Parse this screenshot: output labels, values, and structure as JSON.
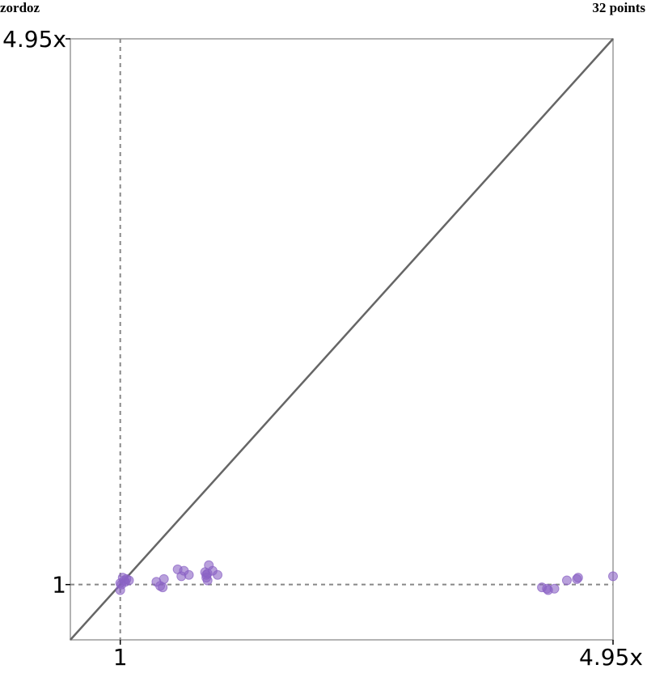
{
  "header": {
    "left_label": "zordoz",
    "right_label": "32 points"
  },
  "chart_data": {
    "type": "scatter",
    "xlabel": "",
    "ylabel": "",
    "xlim": [
      0.6,
      4.95
    ],
    "ylim": [
      0.6,
      4.95
    ],
    "x_ticks": [
      {
        "value": 1,
        "label": "1"
      },
      {
        "value": 4.95,
        "label": "4.95x"
      }
    ],
    "y_ticks": [
      {
        "value": 1,
        "label": "1"
      },
      {
        "value": 4.95,
        "label": "4.95x"
      }
    ],
    "reference_lines": {
      "diagonal": true,
      "x": 1,
      "y": 1,
      "style": "dashed"
    },
    "point_color": "#8a63c4",
    "line_color": "#666666",
    "series": [
      {
        "points": [
          [
            1.0,
            1.01
          ],
          [
            1.02,
            1.05
          ],
          [
            1.0,
            0.96
          ],
          [
            1.03,
            1.03
          ],
          [
            1.04,
            1.02
          ],
          [
            1.05,
            1.04
          ],
          [
            1.01,
            1.0
          ],
          [
            1.07,
            1.03
          ],
          [
            1.29,
            1.02
          ],
          [
            1.32,
            0.99
          ],
          [
            1.34,
            0.98
          ],
          [
            1.35,
            1.04
          ],
          [
            1.46,
            1.11
          ],
          [
            1.49,
            1.06
          ],
          [
            1.51,
            1.1
          ],
          [
            1.55,
            1.07
          ],
          [
            1.68,
            1.09
          ],
          [
            1.69,
            1.07
          ],
          [
            1.69,
            1.05
          ],
          [
            1.7,
            1.03
          ],
          [
            1.71,
            1.14
          ],
          [
            1.74,
            1.1
          ],
          [
            1.78,
            1.07
          ],
          [
            1.7,
            1.08
          ],
          [
            4.38,
            0.98
          ],
          [
            4.42,
            0.97
          ],
          [
            4.43,
            0.96
          ],
          [
            4.48,
            0.97
          ],
          [
            4.58,
            1.03
          ],
          [
            4.66,
            1.04
          ],
          [
            4.67,
            1.05
          ],
          [
            4.95,
            1.06
          ]
        ]
      }
    ]
  }
}
